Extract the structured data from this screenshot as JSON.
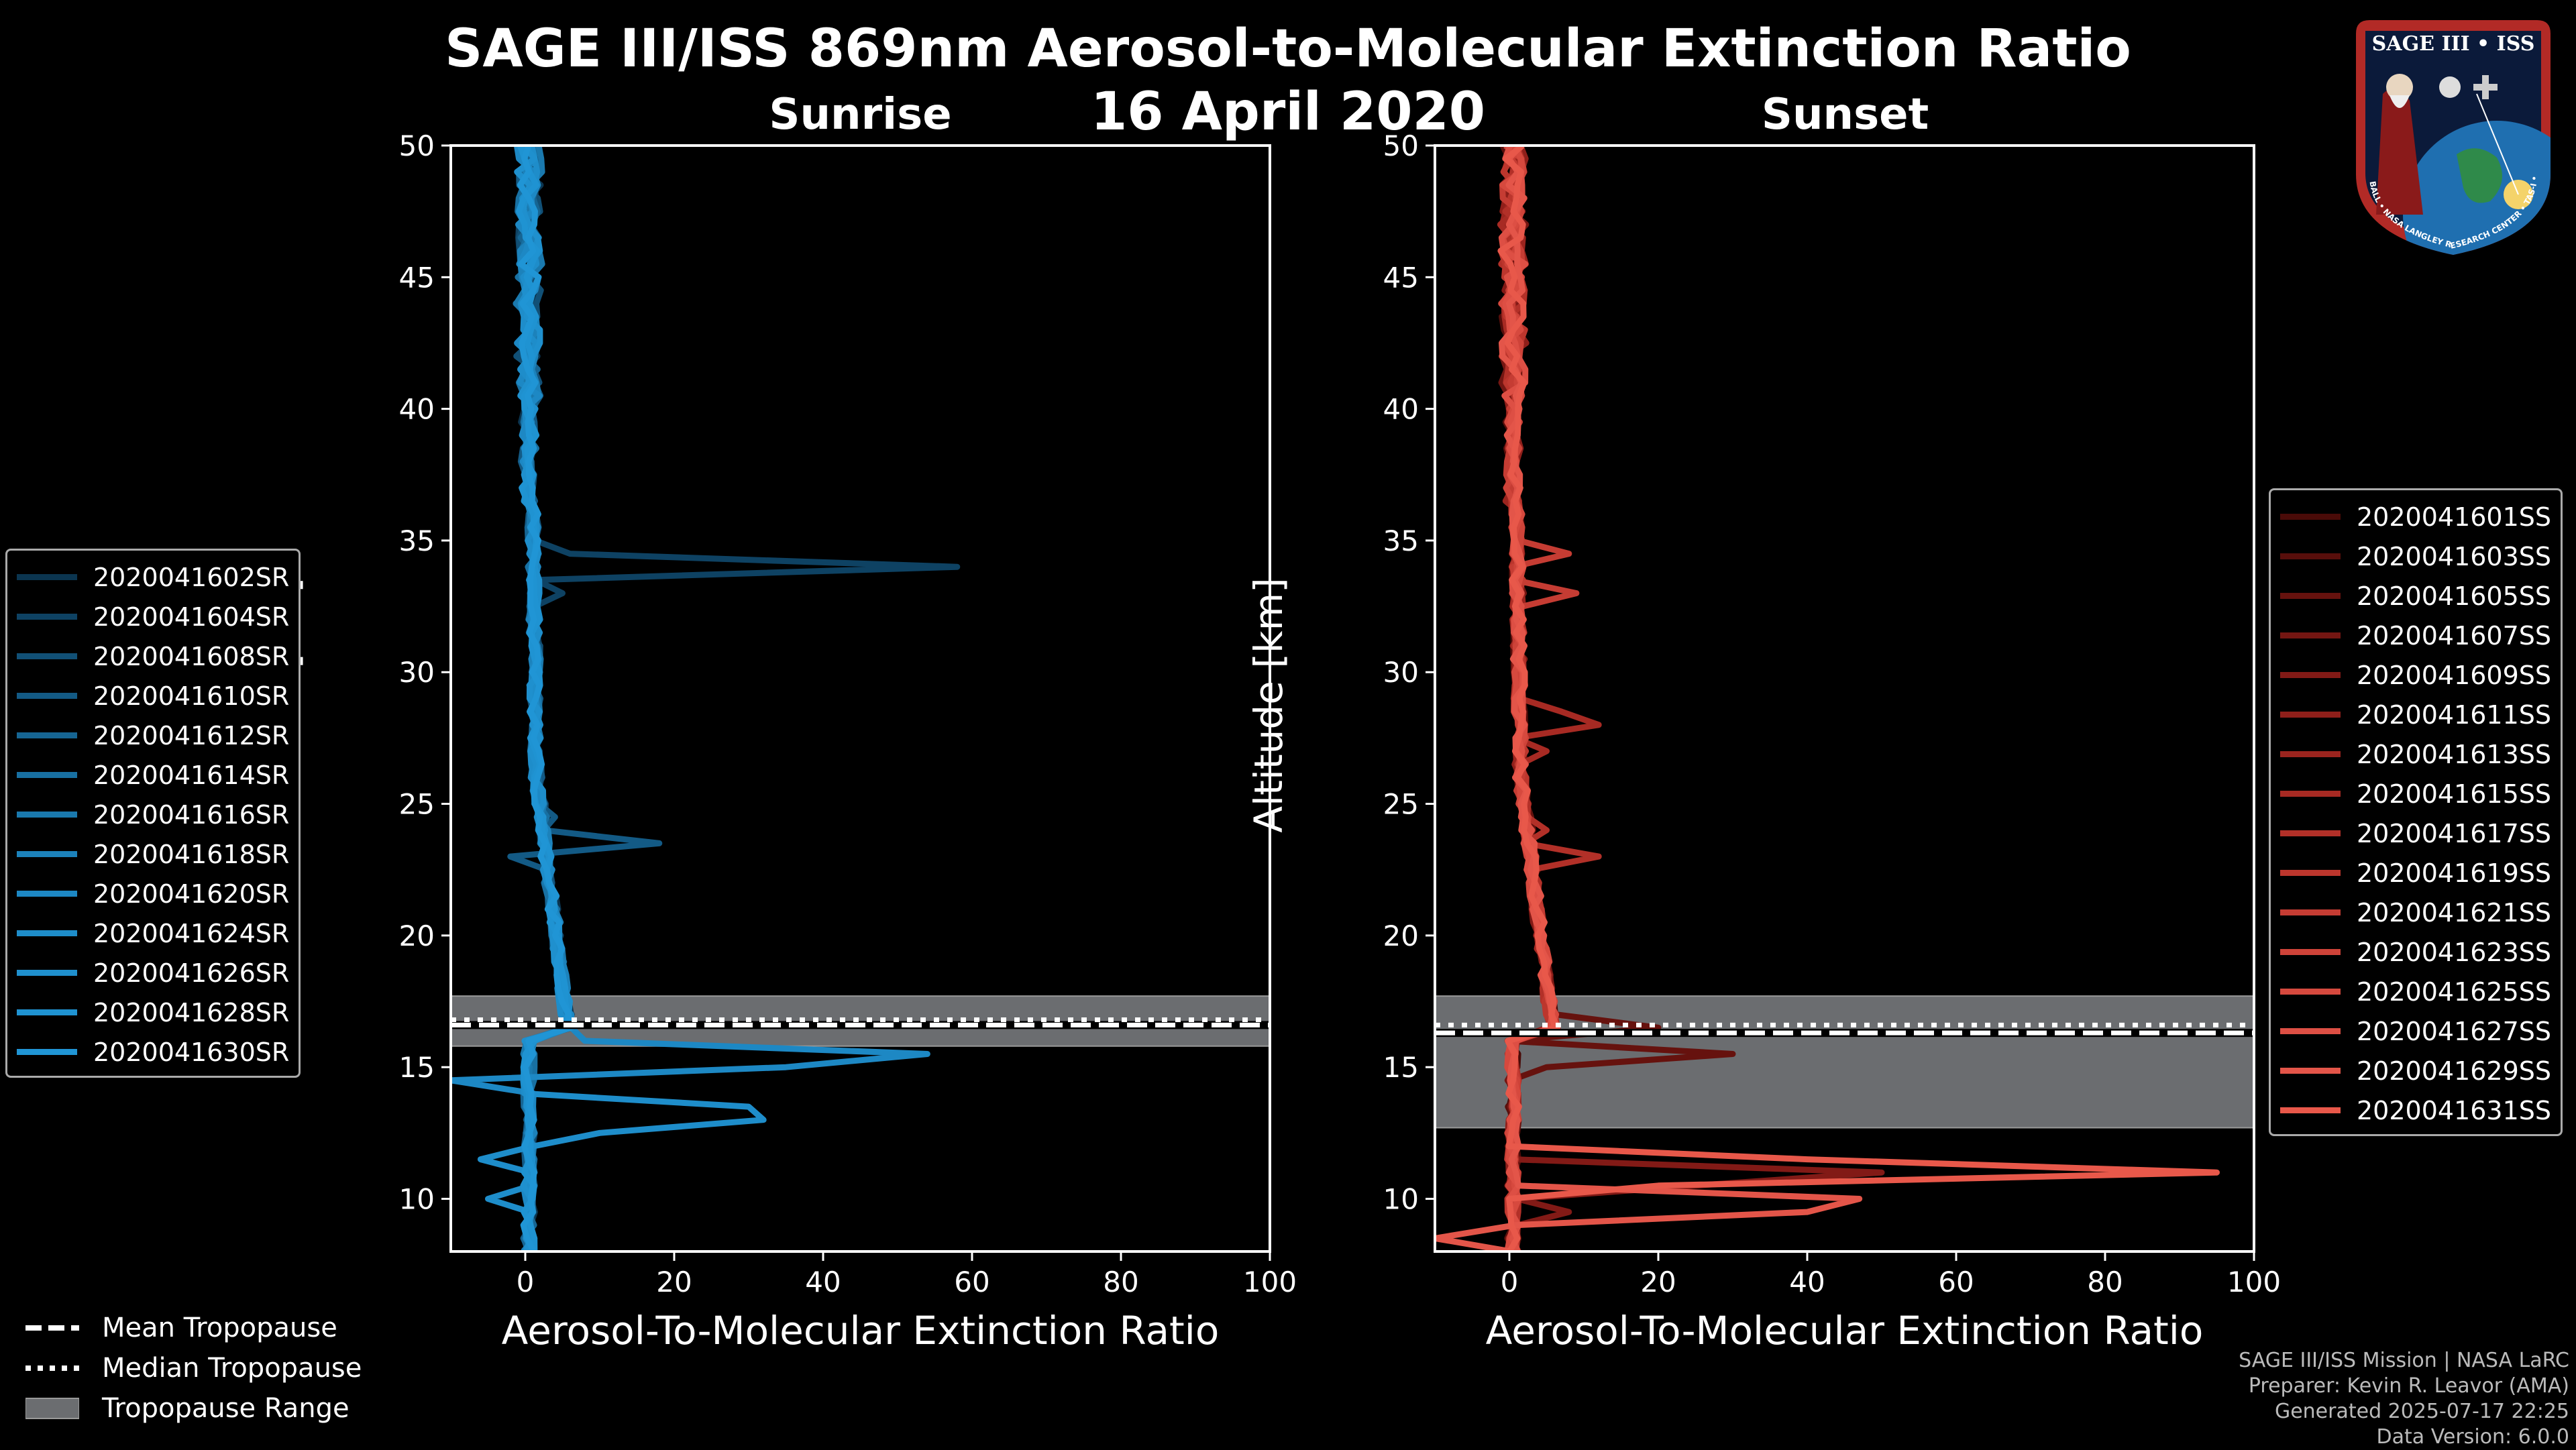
{
  "title": "SAGE III/ISS 869nm Aerosol-to-Molecular Extinction Ratio",
  "date": "16 April 2020",
  "colors": {
    "sunrise": "#1a90d0",
    "sunset": "#e8584a",
    "tropopause_band": "#6b6d70"
  },
  "chart_data": [
    {
      "type": "line",
      "panel": "Sunrise",
      "title": "Sunrise",
      "xlabel": "Aerosol-To-Molecular Extinction Ratio",
      "ylabel": "Altitude [km]",
      "xlim": [
        -10,
        100
      ],
      "ylim": [
        8,
        50
      ],
      "xticks": [
        "0",
        "20",
        "40",
        "60",
        "80",
        "100"
      ],
      "yticks": [
        "10",
        "15",
        "20",
        "25",
        "30",
        "35",
        "40",
        "45",
        "50"
      ],
      "tropopause": {
        "mean": 16.6,
        "median": 16.8,
        "range": [
          15.8,
          17.7
        ]
      },
      "series": [
        {
          "name": "2020041602SR",
          "color": "#0b3550"
        },
        {
          "name": "2020041604SR",
          "color": "#0e4263",
          "spikes": [
            [
              34.0,
              58
            ],
            [
              34.5,
              6
            ],
            [
              33.0,
              5
            ]
          ]
        },
        {
          "name": "2020041608SR",
          "color": "#115076"
        },
        {
          "name": "2020041610SR",
          "color": "#135a85",
          "spikes": [
            [
              24.5,
              4
            ],
            [
              23.5,
              18
            ],
            [
              23.0,
              -2
            ]
          ]
        },
        {
          "name": "2020041612SR",
          "color": "#166593"
        },
        {
          "name": "2020041614SR",
          "color": "#1870a2"
        },
        {
          "name": "2020041616SR",
          "color": "#1a79ae"
        },
        {
          "name": "2020041618SR",
          "color": "#1c82bb"
        },
        {
          "name": "2020041620SR",
          "color": "#1d88c4",
          "spikes": [
            [
              16.0,
              8
            ],
            [
              15.5,
              54
            ],
            [
              15.0,
              35
            ],
            [
              14.5,
              -10
            ]
          ]
        },
        {
          "name": "2020041624SR",
          "color": "#1e8dca",
          "spikes": [
            [
              13.5,
              30
            ],
            [
              13.0,
              32
            ],
            [
              12.5,
              10
            ],
            [
              11.5,
              -6
            ],
            [
              10.0,
              -5
            ]
          ]
        },
        {
          "name": "2020041626SR",
          "color": "#1f90ce"
        },
        {
          "name": "2020041628SR",
          "color": "#1f93d2"
        },
        {
          "name": "2020041630SR",
          "color": "#2095d5"
        }
      ]
    },
    {
      "type": "line",
      "panel": "Sunset",
      "title": "Sunset",
      "xlabel": "Aerosol-To-Molecular Extinction Ratio",
      "ylabel": "Altitude [km]",
      "xlim": [
        -10,
        100
      ],
      "ylim": [
        8,
        50
      ],
      "xticks": [
        "0",
        "20",
        "40",
        "60",
        "80",
        "100"
      ],
      "yticks": [
        "10",
        "15",
        "20",
        "25",
        "30",
        "35",
        "40",
        "45",
        "50"
      ],
      "tropopause": {
        "mean": 16.3,
        "median": 16.6,
        "range": [
          12.7,
          17.7
        ]
      },
      "series": [
        {
          "name": "2020041601SS",
          "color": "#4a0b08"
        },
        {
          "name": "2020041603SS",
          "color": "#580e0b"
        },
        {
          "name": "2020041605SS",
          "color": "#66120e",
          "spikes": [
            [
              16.5,
              20
            ],
            [
              15.5,
              30
            ],
            [
              15.0,
              5
            ]
          ]
        },
        {
          "name": "2020041607SS",
          "color": "#741612"
        },
        {
          "name": "2020041609SS",
          "color": "#821a16",
          "spikes": [
            [
              11.0,
              50
            ],
            [
              10.5,
              25
            ],
            [
              9.5,
              8
            ]
          ]
        },
        {
          "name": "2020041611SS",
          "color": "#8f1f1a"
        },
        {
          "name": "2020041613SS",
          "color": "#9b241e"
        },
        {
          "name": "2020041615SS",
          "color": "#a72a23",
          "spikes": [
            [
              28.5,
              7
            ],
            [
              28.0,
              12
            ],
            [
              27.0,
              5
            ]
          ]
        },
        {
          "name": "2020041617SS",
          "color": "#b23028",
          "spikes": [
            [
              24.0,
              5
            ],
            [
              23.0,
              12
            ],
            [
              22.5,
              3
            ]
          ]
        },
        {
          "name": "2020041619SS",
          "color": "#bc362d"
        },
        {
          "name": "2020041621SS",
          "color": "#c53c33",
          "spikes": [
            [
              34.5,
              8
            ],
            [
              33.0,
              9
            ]
          ]
        },
        {
          "name": "2020041623SS",
          "color": "#ce4339"
        },
        {
          "name": "2020041625SS",
          "color": "#d6493e"
        },
        {
          "name": "2020041627SS",
          "color": "#dd4f44"
        },
        {
          "name": "2020041629SS",
          "color": "#e35549",
          "spikes": [
            [
              10.0,
              47
            ],
            [
              9.5,
              40
            ],
            [
              8.5,
              -10
            ]
          ]
        },
        {
          "name": "2020041631SS",
          "color": "#e8584a",
          "spikes": [
            [
              11.5,
              40
            ],
            [
              11.0,
              95
            ],
            [
              10.5,
              20
            ]
          ]
        }
      ]
    }
  ],
  "tropopause_legend": {
    "mean": "Mean Tropopause",
    "median": "Median Tropopause",
    "range": "Tropopause Range"
  },
  "credits": {
    "line1": "SAGE III/ISS Mission | NASA LaRC",
    "line2": "Preparer: Kevin R. Leavor (AMA)",
    "line3": "Generated 2025-07-17 22:25",
    "line4": "Data Version: 6.0.0"
  },
  "logo": {
    "name": "SAGE III • ISS",
    "ring_text": "BALL • NASA LANGLEY RESEARCH CENTER • TAS-I • ESA"
  }
}
